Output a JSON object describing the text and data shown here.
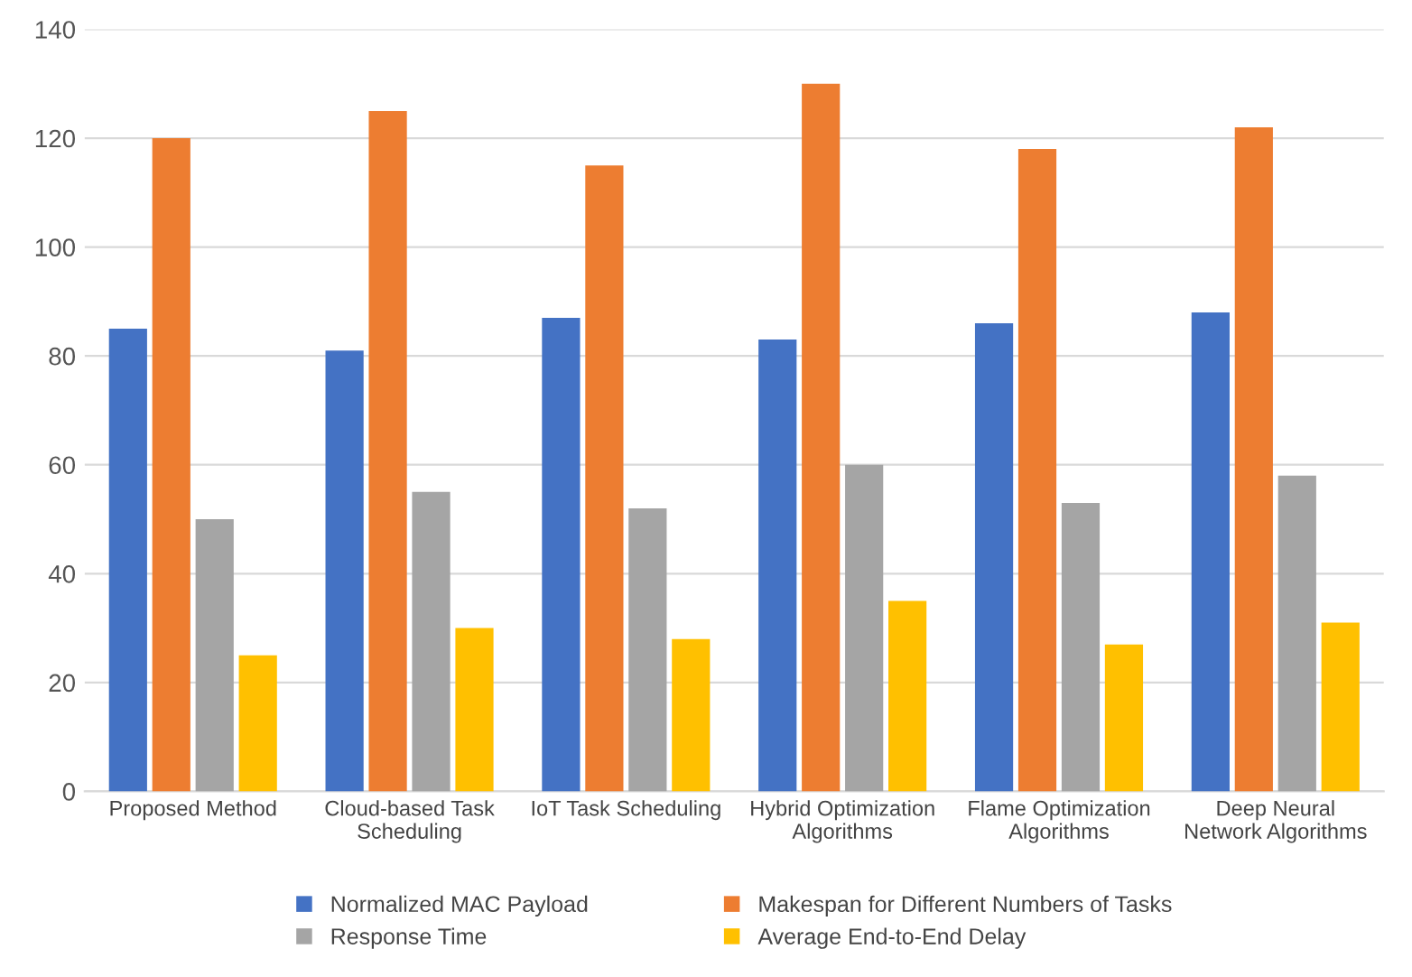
{
  "chart_data": {
    "type": "bar",
    "categories": [
      "Proposed Method",
      "Cloud-based Task\nScheduling",
      "IoT Task Scheduling",
      "Hybrid Optimization\nAlgorithms",
      "Flame Optimization\nAlgorithms",
      "Deep Neural\nNetwork Algorithms"
    ],
    "series": [
      {
        "name": "Normalized MAC Payload",
        "color": "#4472c4",
        "values": [
          85,
          81,
          87,
          83,
          86,
          88
        ]
      },
      {
        "name": "Makespan for Different Numbers of Tasks",
        "color": "#ed7d31",
        "values": [
          120,
          125,
          115,
          130,
          118,
          122
        ]
      },
      {
        "name": "Response Time",
        "color": "#a5a5a5",
        "values": [
          50,
          55,
          52,
          60,
          53,
          58
        ]
      },
      {
        "name": "Average End-to-End Delay",
        "color": "#ffc000",
        "values": [
          25,
          30,
          28,
          35,
          27,
          31
        ]
      }
    ],
    "ylim": [
      0,
      140
    ],
    "yticks": [
      0,
      20,
      40,
      60,
      80,
      100,
      120,
      140
    ],
    "grid": "y",
    "legend": "bottom"
  }
}
